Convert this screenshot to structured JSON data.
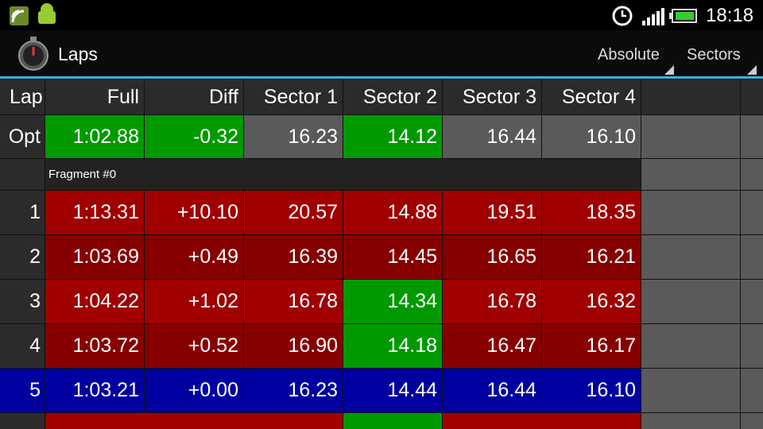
{
  "status_bar": {
    "time": "18:18"
  },
  "action_bar": {
    "title": "Laps",
    "menu": [
      "Absolute",
      "Sectors"
    ]
  },
  "table": {
    "columns": [
      "Lap",
      "Full",
      "Diff",
      "Sector 1",
      "Sector 2",
      "Sector 3",
      "Sector 4"
    ],
    "rows": [
      {
        "lap": "Opt",
        "cells": [
          "1:02.88",
          "-0.32",
          "16.23",
          "14.12",
          "16.44",
          "16.10"
        ],
        "colors": [
          "#2b2b2b",
          "#009a00",
          "#009a00",
          "#5a5a5a",
          "#009a00",
          "#5a5a5a",
          "#5a5a5a"
        ]
      },
      {
        "fragment": "Fragment #0"
      },
      {
        "lap": "1",
        "cells": [
          "1:13.31",
          "+10.10",
          "20.57",
          "14.88",
          "19.51",
          "18.35"
        ],
        "colors": [
          "#2b2b2b",
          "#a00000",
          "#a00000",
          "#a00000",
          "#a00000",
          "#a00000",
          "#a00000"
        ]
      },
      {
        "lap": "2",
        "cells": [
          "1:03.69",
          "+0.49",
          "16.39",
          "14.45",
          "16.65",
          "16.21"
        ],
        "colors": [
          "#2b2b2b",
          "#870000",
          "#870000",
          "#870000",
          "#870000",
          "#870000",
          "#870000"
        ]
      },
      {
        "lap": "3",
        "cells": [
          "1:04.22",
          "+1.02",
          "16.78",
          "14.34",
          "16.78",
          "16.32"
        ],
        "colors": [
          "#2b2b2b",
          "#a00000",
          "#a00000",
          "#a00000",
          "#009a00",
          "#a00000",
          "#a00000"
        ]
      },
      {
        "lap": "4",
        "cells": [
          "1:03.72",
          "+0.52",
          "16.90",
          "14.18",
          "16.47",
          "16.17"
        ],
        "colors": [
          "#2b2b2b",
          "#870000",
          "#870000",
          "#870000",
          "#009a00",
          "#870000",
          "#870000"
        ]
      },
      {
        "lap": "5",
        "cells": [
          "1:03.21",
          "+0.00",
          "16.23",
          "14.44",
          "16.44",
          "16.10"
        ],
        "colors": [
          "#0000a0",
          "#0000a0",
          "#0000a0",
          "#0000a0",
          "#0000a0",
          "#0000a0",
          "#0000a0"
        ]
      }
    ]
  }
}
